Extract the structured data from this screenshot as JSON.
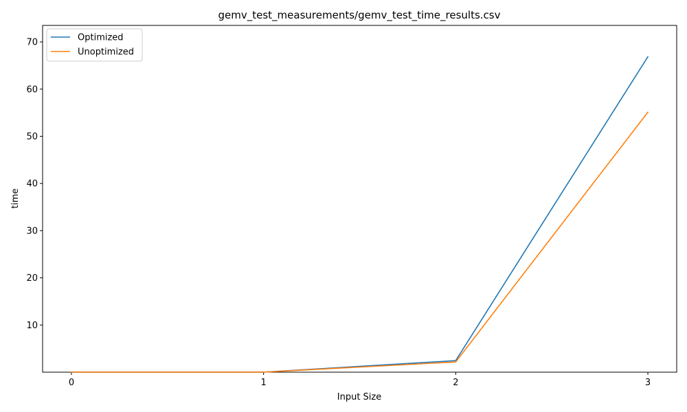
{
  "chart_data": {
    "type": "line",
    "title": "gemv_test_measurements/gemv_test_time_results.csv",
    "xlabel": "Input Size",
    "ylabel": "time",
    "x": [
      0,
      1,
      2,
      3
    ],
    "xticks": [
      "0",
      "1",
      "2",
      "3"
    ],
    "yticks": [
      "10",
      "20",
      "30",
      "40",
      "50",
      "60",
      "70"
    ],
    "xlim": [
      -0.15,
      3.15
    ],
    "ylim": [
      0,
      73.5
    ],
    "grid": false,
    "legend_position": "top-left",
    "series": [
      {
        "name": "Optimized",
        "color": "#1f77b4",
        "values": [
          0.01,
          0.02,
          2.45,
          66.85
        ]
      },
      {
        "name": "Unoptimized",
        "color": "#ff7f0e",
        "values": [
          0.01,
          0.02,
          2.15,
          55.1
        ]
      }
    ]
  }
}
